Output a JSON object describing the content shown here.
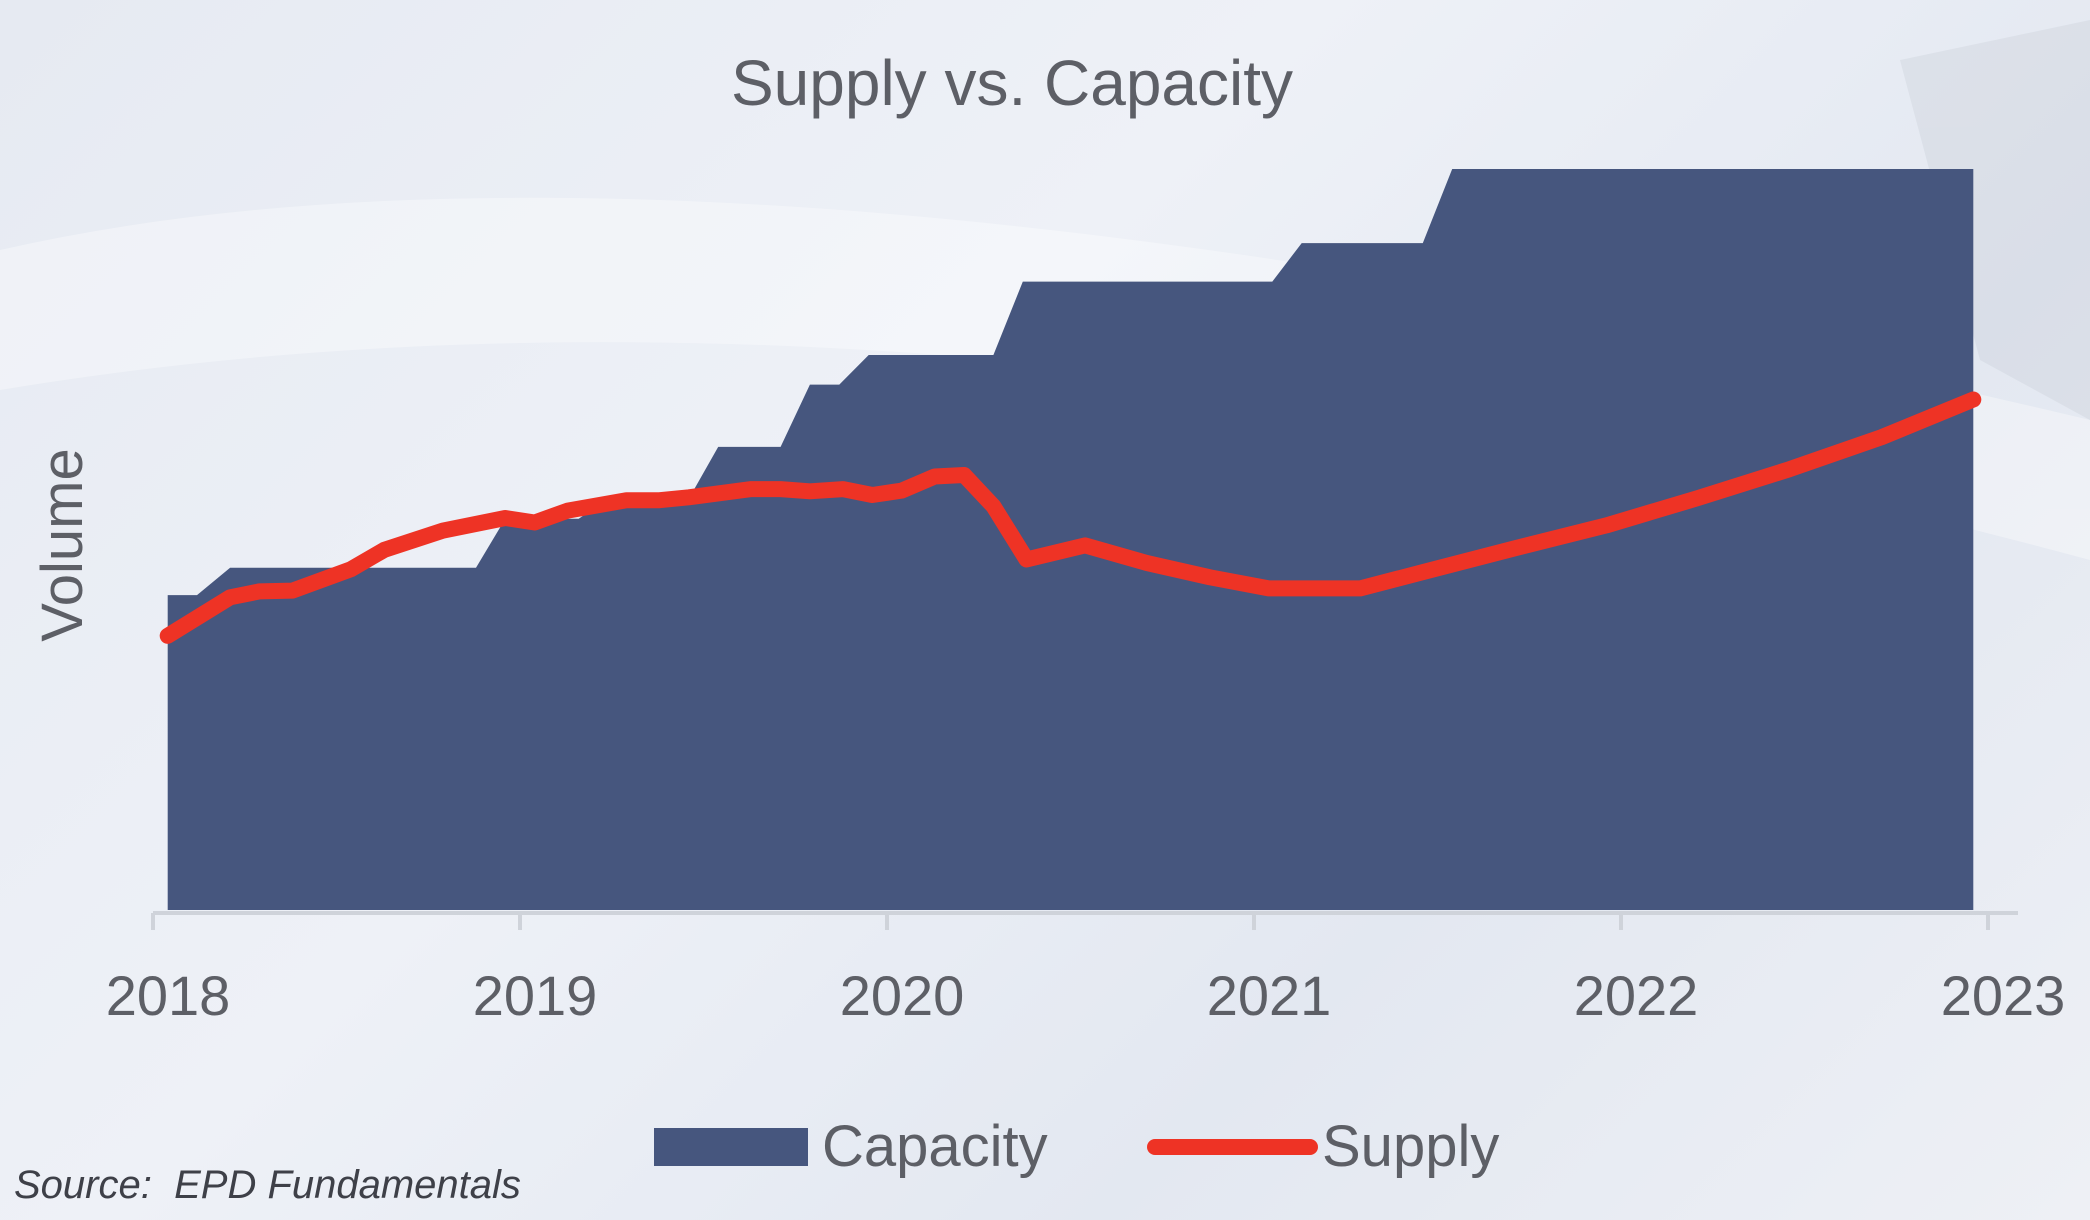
{
  "chart_data": {
    "type": "area",
    "title": "Supply vs. Capacity",
    "ylabel": "Volume",
    "xlabel": "",
    "xlim": [
      2018,
      2023
    ],
    "ylim": [
      0,
      100
    ],
    "x_ticks": [
      "2018",
      "2019",
      "2020",
      "2021",
      "2022",
      "2023"
    ],
    "series": [
      {
        "name": "Capacity",
        "type": "area",
        "color": "#46567e",
        "x": [
          2018.04,
          2018.12,
          2018.21,
          2018.88,
          2018.96,
          2019.16,
          2019.24,
          2019.46,
          2019.54,
          2019.71,
          2019.79,
          2019.87,
          2019.95,
          2020.29,
          2020.37,
          2021.05,
          2021.13,
          2021.46,
          2021.54,
          2022.96
        ],
        "values": [
          42.5,
          42.5,
          46.2,
          46.2,
          52.8,
          52.8,
          55.5,
          55.5,
          62.5,
          62.5,
          70.9,
          70.9,
          74.9,
          74.9,
          84.8,
          84.8,
          90.0,
          90.0,
          100,
          100
        ]
      },
      {
        "name": "Supply",
        "type": "line",
        "color": "#ee3325",
        "x": [
          2018.04,
          2018.21,
          2018.29,
          2018.38,
          2018.54,
          2018.63,
          2018.79,
          2018.96,
          2019.04,
          2019.13,
          2019.29,
          2019.38,
          2019.46,
          2019.63,
          2019.71,
          2019.79,
          2019.88,
          2019.96,
          2020.04,
          2020.13,
          2020.21,
          2020.29,
          2020.38,
          2020.54,
          2020.71,
          2020.88,
          2021.04,
          2021.29,
          2021.46,
          2021.71,
          2021.96,
          2022.21,
          2022.46,
          2022.71,
          2022.96
        ],
        "values": [
          37.0,
          42.2,
          43.0,
          43.1,
          46.0,
          48.6,
          51.2,
          52.9,
          52.3,
          53.9,
          55.3,
          55.3,
          55.7,
          56.8,
          56.8,
          56.5,
          56.8,
          56.0,
          56.6,
          58.5,
          58.7,
          54.5,
          47.3,
          49.2,
          46.8,
          44.9,
          43.4,
          43.4,
          45.6,
          48.8,
          51.9,
          55.6,
          59.5,
          63.8,
          68.9
        ]
      }
    ],
    "legend": {
      "position": "bottom-center",
      "entries": [
        "Capacity",
        "Supply"
      ]
    },
    "grid": false
  },
  "source_note": "Source:  EPD Fundamentals"
}
